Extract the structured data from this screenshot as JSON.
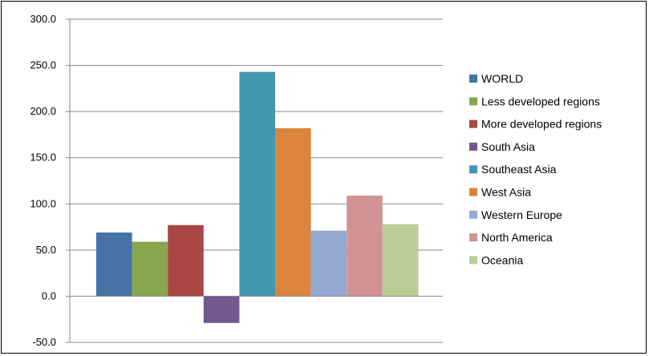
{
  "chart_data": {
    "type": "bar",
    "title": "",
    "xlabel": "",
    "ylabel": "",
    "ylim": [
      -50,
      300
    ],
    "yticks": [
      "300.0",
      "250.0",
      "200.0",
      "150.0",
      "100.0",
      "50.0",
      "0.0",
      "-50.0"
    ],
    "ytick_values": [
      300,
      250,
      200,
      150,
      100,
      50,
      0,
      -50
    ],
    "grid": true,
    "legend_position": "right",
    "categories": [
      "WORLD",
      "Less developed regions",
      "More developed regions",
      "South Asia",
      "Southeast Asia",
      "West Asia",
      "Western Europe",
      "North America",
      "Oceania"
    ],
    "values": [
      69,
      59,
      77,
      -29,
      243,
      182,
      71,
      109,
      78
    ],
    "colors": [
      "#4572A7",
      "#89A54E",
      "#AA4643",
      "#71588F",
      "#4198AF",
      "#DB843D",
      "#93A9CF",
      "#D19392",
      "#B9CD96"
    ]
  }
}
